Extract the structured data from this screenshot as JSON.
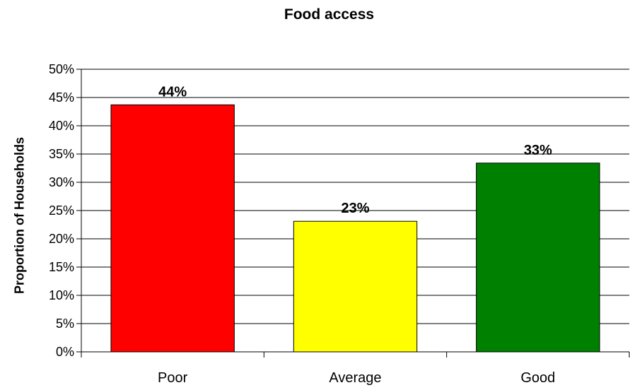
{
  "chart_data": {
    "type": "bar",
    "title": "Food access",
    "ylabel": "Proportion of Households",
    "xlabel": "",
    "categories": [
      "Poor",
      "Average",
      "Good"
    ],
    "values": [
      43.7,
      23.1,
      33.4
    ],
    "data_labels": [
      "44%",
      "23%",
      "33%"
    ],
    "bar_colors": [
      "#FF0000",
      "#FFFF00",
      "#008000"
    ],
    "ylim": [
      0,
      50
    ],
    "yticks": [
      0,
      5,
      10,
      15,
      20,
      25,
      30,
      35,
      40,
      45,
      50
    ],
    "ytick_labels": [
      "0%",
      "5%",
      "10%",
      "15%",
      "20%",
      "25%",
      "30%",
      "35%",
      "40%",
      "45%",
      "50%"
    ],
    "grid": true,
    "legend": "none"
  }
}
